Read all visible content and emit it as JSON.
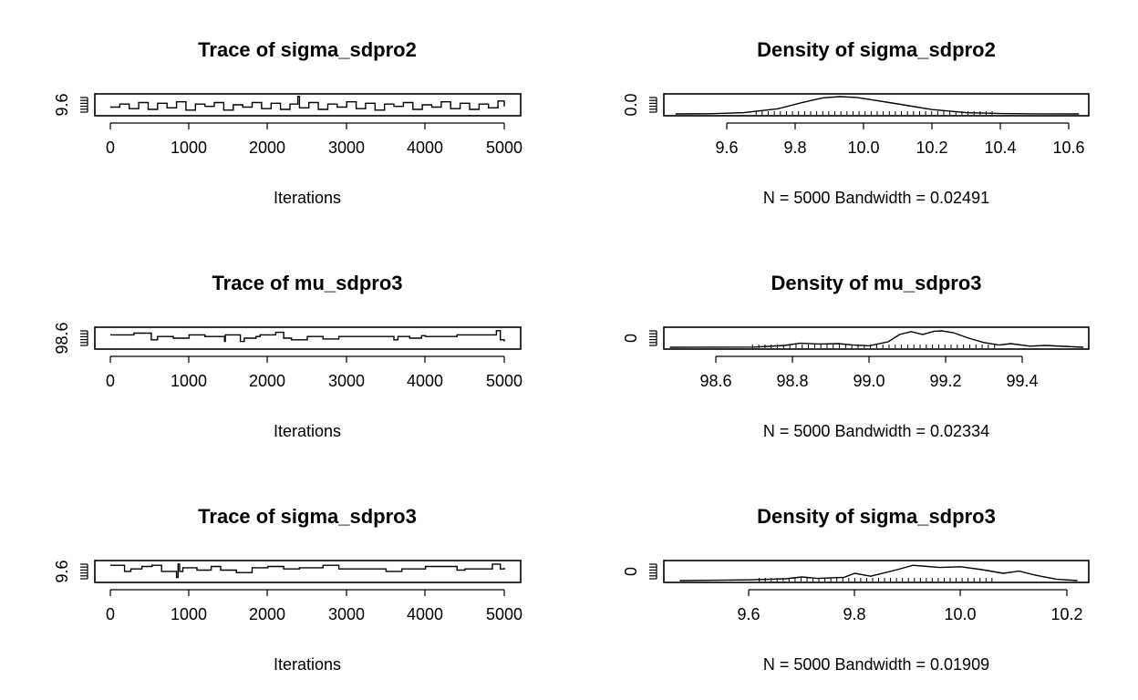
{
  "chart_data": [
    {
      "type": "line",
      "title": "Trace of sigma_sdpro2",
      "xlabel": "Iterations",
      "xticks": [
        0,
        1000,
        2000,
        3000,
        4000,
        5000
      ],
      "xlim": [
        0,
        5000
      ],
      "yticks": [
        "9.6"
      ],
      "ylim": [
        9.45,
        10.65
      ],
      "series": [
        {
          "x": [
            0,
            120,
            240,
            360,
            480,
            600,
            720,
            840,
            960,
            1080,
            1200,
            1320,
            1440,
            1560,
            1680,
            1800,
            1920,
            2040,
            2160,
            2280,
            2380,
            2400,
            2520,
            2640,
            2760,
            2880,
            3000,
            3120,
            3240,
            3360,
            3480,
            3600,
            3720,
            3840,
            3960,
            4080,
            4200,
            4320,
            4440,
            4560,
            4680,
            4800,
            4920,
            5000
          ],
          "y": [
            9.9,
            10.1,
            9.8,
            10.2,
            9.75,
            10.15,
            9.85,
            10.25,
            9.7,
            10.1,
            9.95,
            10.2,
            9.7,
            10.05,
            9.9,
            10.2,
            9.8,
            10.15,
            9.75,
            10.1,
            10.6,
            9.85,
            10.2,
            9.75,
            10.1,
            9.9,
            10.25,
            9.8,
            10.15,
            9.7,
            10.1,
            9.95,
            10.2,
            9.75,
            10.05,
            9.9,
            10.25,
            9.8,
            10.15,
            9.75,
            10.1,
            9.85,
            10.3,
            9.95
          ]
        }
      ]
    },
    {
      "type": "line",
      "title": "Density of sigma_sdpro2",
      "xlabel": "N = 5000   Bandwidth = 0.02491",
      "xticks": [
        "9.6",
        "9.8",
        "10.0",
        "10.2",
        "10.4",
        "10.6"
      ],
      "xlim": [
        9.45,
        10.63
      ],
      "yticks": [
        "0.0"
      ],
      "ylim": [
        0,
        4.2
      ],
      "series": [
        {
          "x": [
            9.45,
            9.55,
            9.65,
            9.75,
            9.82,
            9.88,
            9.93,
            9.98,
            10.03,
            10.1,
            10.2,
            10.3,
            10.4,
            10.5,
            10.63
          ],
          "y": [
            0,
            0.05,
            0.3,
            1.2,
            2.6,
            3.7,
            4.0,
            3.8,
            3.2,
            2.3,
            1.0,
            0.3,
            0.08,
            0.02,
            0
          ]
        }
      ]
    },
    {
      "type": "line",
      "title": "Trace of mu_sdpro3",
      "xlabel": "Iterations",
      "xticks": [
        0,
        1000,
        2000,
        3000,
        4000,
        5000
      ],
      "xlim": [
        0,
        5000
      ],
      "yticks": [
        "98.6"
      ],
      "ylim": [
        98.45,
        99.55
      ],
      "series": [
        {
          "x": [
            0,
            300,
            520,
            600,
            800,
            1000,
            1200,
            1450,
            1460,
            1650,
            1700,
            1850,
            1900,
            2100,
            2200,
            2300,
            2500,
            2700,
            2900,
            3200,
            3600,
            3650,
            3800,
            3950,
            4000,
            4400,
            4850,
            4900,
            4950,
            5000
          ],
          "y": [
            99.2,
            99.3,
            98.9,
            99.1,
            99.0,
            99.2,
            99.1,
            98.8,
            99.2,
            98.8,
            99.0,
            99.1,
            99.2,
            99.35,
            99.0,
            98.9,
            99.1,
            98.95,
            99.1,
            99.1,
            98.9,
            99.1,
            99.0,
            99.15,
            99.1,
            99.2,
            99.2,
            99.45,
            98.9,
            98.8
          ]
        }
      ]
    },
    {
      "type": "line",
      "title": "Density of mu_sdpro3",
      "xlabel": "N = 5000   Bandwidth = 0.02334",
      "xticks": [
        "98.6",
        "98.8",
        "99.0",
        "99.2",
        "99.4"
      ],
      "xlim": [
        98.48,
        99.56
      ],
      "yticks": [
        "0"
      ],
      "ylim": [
        0,
        5
      ],
      "series": [
        {
          "x": [
            98.48,
            98.7,
            98.78,
            98.82,
            98.87,
            98.92,
            98.96,
            99.0,
            99.05,
            99.08,
            99.11,
            99.14,
            99.17,
            99.19,
            99.22,
            99.26,
            99.3,
            99.34,
            99.37,
            99.42,
            99.46,
            99.56
          ],
          "y": [
            0,
            0.05,
            0.5,
            1.1,
            0.9,
            1.0,
            0.6,
            0.4,
            1.5,
            3.5,
            4.3,
            3.5,
            4.4,
            4.5,
            4.0,
            2.5,
            1.3,
            0.6,
            1.0,
            0.3,
            0.5,
            0
          ]
        }
      ]
    },
    {
      "type": "line",
      "title": "Trace of sigma_sdpro3",
      "xlabel": "Iterations",
      "xticks": [
        0,
        1000,
        2000,
        3000,
        4000,
        5000
      ],
      "xlim": [
        0,
        5000
      ],
      "yticks": [
        "9.6"
      ],
      "ylim": [
        9.47,
        10.22
      ],
      "series": [
        {
          "x": [
            0,
            180,
            260,
            400,
            530,
            650,
            840,
            860,
            880,
            920,
            1100,
            1280,
            1400,
            1600,
            1800,
            2000,
            2200,
            2400,
            2700,
            2900,
            3500,
            3700,
            4000,
            4400,
            4500,
            4850,
            4950,
            5000
          ],
          "y": [
            10.1,
            9.85,
            9.95,
            10.05,
            10.1,
            9.85,
            9.6,
            10.15,
            9.85,
            10.0,
            9.9,
            10.05,
            9.9,
            9.8,
            10.0,
            10.05,
            9.95,
            10.0,
            10.1,
            9.95,
            9.85,
            9.95,
            10.05,
            9.9,
            9.95,
            10.15,
            9.95,
            10.0
          ]
        }
      ]
    },
    {
      "type": "line",
      "title": "Density of sigma_sdpro3",
      "xlabel": "N = 5000   Bandwidth = 0.01909",
      "xticks": [
        "9.6",
        "9.8",
        "10.0",
        "10.2"
      ],
      "xlim": [
        9.47,
        10.22
      ],
      "yticks": [
        "0"
      ],
      "ylim": [
        0,
        5
      ],
      "series": [
        {
          "x": [
            9.47,
            9.6,
            9.67,
            9.7,
            9.73,
            9.78,
            9.8,
            9.83,
            9.88,
            9.91,
            9.96,
            10.0,
            10.04,
            10.08,
            10.11,
            10.14,
            10.18,
            10.22
          ],
          "y": [
            0,
            0.2,
            0.5,
            1.0,
            0.6,
            0.9,
            2.0,
            1.2,
            3.0,
            4.2,
            3.6,
            3.8,
            3.0,
            2.0,
            2.6,
            1.5,
            0.4,
            0
          ]
        }
      ]
    }
  ]
}
